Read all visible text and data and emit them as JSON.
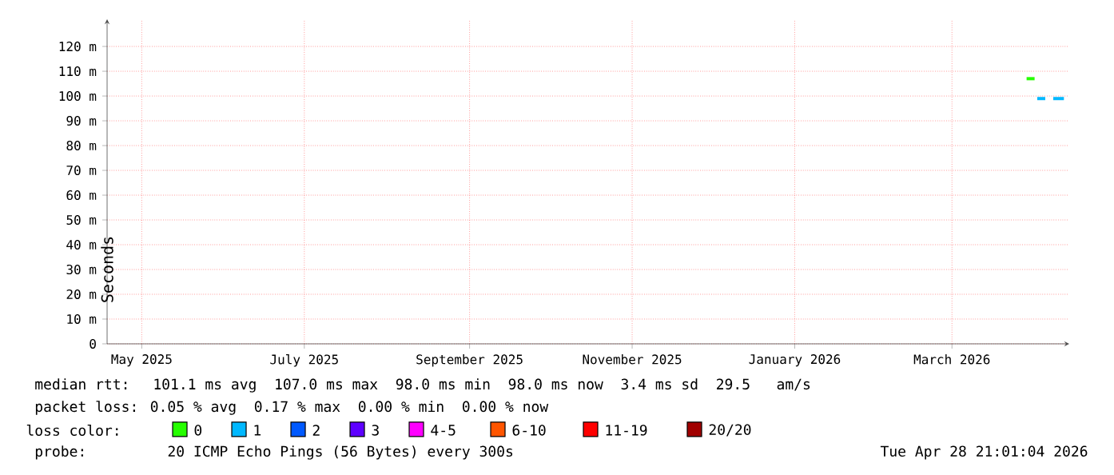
{
  "chart_data": {
    "type": "line",
    "ylabel": "Seconds",
    "legend_title": "loss color:",
    "legend": "bottom",
    "grid": true,
    "xlim": [
      "2025-04-18",
      "2026-04-14"
    ],
    "ylim": [
      0,
      131
    ],
    "xticks": [
      {
        "value": "2025-05-01",
        "label": "May 2025"
      },
      {
        "value": "2025-07-01",
        "label": "July 2025"
      },
      {
        "value": "2025-09-01",
        "label": "September 2025"
      },
      {
        "value": "2025-11-01",
        "label": "November 2025"
      },
      {
        "value": "2026-01-01",
        "label": "January 2026"
      },
      {
        "value": "2026-03-01",
        "label": "March 2026"
      }
    ],
    "yticks": [
      0,
      {
        "value": 10,
        "label": "10 m"
      },
      {
        "value": 20,
        "label": "20 m"
      },
      {
        "value": 30,
        "label": "30 m"
      },
      {
        "value": 40,
        "label": "40 m"
      },
      {
        "value": 50,
        "label": "50 m"
      },
      {
        "value": 60,
        "label": "60 m"
      },
      {
        "value": 70,
        "label": "70 m"
      },
      {
        "value": 80,
        "label": "80 m"
      },
      {
        "value": 90,
        "label": "90 m"
      },
      {
        "value": 100,
        "label": "100 m"
      },
      {
        "value": 110,
        "label": "110 m"
      },
      {
        "value": 120,
        "label": "120 m"
      }
    ],
    "series": [
      {
        "name": "0",
        "color": "#26ff00",
        "x": [
          "2026-03-29",
          "2026-04-01"
        ],
        "values": [
          107,
          107
        ]
      },
      {
        "name": "1",
        "color": "#00b8ff",
        "x": [
          "2026-04-02",
          "2026-04-05",
          "2026-04-07",
          "2026-04-08",
          "2026-04-12"
        ],
        "values": [
          99,
          99,
          null,
          99,
          99
        ]
      },
      {
        "name": "2",
        "color": "#0059ff"
      },
      {
        "name": "3",
        "color": "#5e00ff"
      },
      {
        "name": "4-5",
        "color": "#ff00ff"
      },
      {
        "name": "6-10",
        "color": "#ff5500"
      },
      {
        "name": "11-19",
        "color": "#ff0000"
      },
      {
        "name": "20/20",
        "color": "#a10000"
      }
    ],
    "annotations": [
      "median rtt:  101.1 ms avg  107.0 ms max  98.0 ms min  98.0 ms now  3.4 ms sd  29.5   am/s",
      "packet loss: 0.05 % avg  0.17 % max  0.00 % min  0.00 % now",
      "probe:       20 ICMP Echo Pings (56 Bytes) every 300s",
      "Tue Apr 28 21:01:04 2026"
    ]
  }
}
